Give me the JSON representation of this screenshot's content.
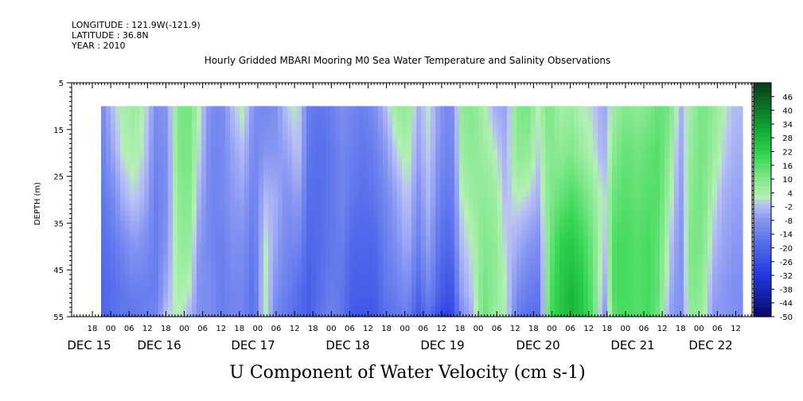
{
  "header": {
    "longitude": "LONGITUDE : 121.9W(-121.9)",
    "latitude": "LATITUDE : 36.8N",
    "year": "YEAR : 2010"
  },
  "chart_data": {
    "type": "heatmap",
    "title": "Hourly Gridded MBARI Mooring M0 Sea Water Temperature and Salinity Observations",
    "ylabel": "DEPTH (m)",
    "xlabel": "U Component of Water Velocity (cm s-1)",
    "ylim": [
      55,
      5
    ],
    "y_ticks": [
      5,
      15,
      25,
      35,
      45,
      55
    ],
    "data_depth_range": [
      10,
      55
    ],
    "x_hour_ticks": [
      "18",
      "00",
      "06",
      "12",
      "18",
      "00",
      "06",
      "12",
      "18",
      "00",
      "06",
      "12",
      "18",
      "00",
      "06",
      "12",
      "18",
      "00",
      "06",
      "12",
      "18",
      "00",
      "06",
      "12",
      "18",
      "00",
      "06",
      "12",
      "18",
      "00",
      "06",
      "12",
      "18",
      "00",
      "06",
      "12"
    ],
    "date_labels": [
      "DEC 15",
      "DEC 16",
      "DEC 17",
      "DEC 18",
      "DEC 19",
      "DEC 20",
      "DEC 21",
      "DEC 22"
    ],
    "colorbar": {
      "labels": [
        "46",
        "40",
        "34",
        "28",
        "22",
        "16",
        "10",
        "4",
        "-2",
        "-8",
        "-14",
        "-20",
        "-26",
        "-32",
        "-38",
        "-44",
        "-50"
      ],
      "range": [
        -50,
        52
      ],
      "colors": {
        "strong_positive": "#0b3d17",
        "positive": "#2ed84f",
        "weak_positive": "#a8f0a8",
        "weak_negative": "#aab4f2",
        "negative": "#4a6ae8",
        "strong_negative": "#0a0f6b"
      }
    },
    "time_range_hours": [
      0,
      176
    ],
    "profile_times_hours": [
      0,
      3,
      6,
      9,
      12,
      15,
      18,
      21,
      24,
      27,
      30,
      33,
      36,
      39,
      42,
      45,
      48,
      51,
      54,
      57,
      60,
      63,
      66,
      69,
      72,
      75,
      78,
      81,
      84,
      87,
      90,
      93,
      96,
      99,
      102,
      105,
      108,
      111,
      114,
      117,
      120,
      123,
      126,
      129,
      132,
      135,
      138,
      141,
      144,
      147,
      150,
      153,
      156,
      159,
      162,
      165,
      168,
      171,
      174
    ],
    "profile_depths_m": [
      10,
      20,
      30,
      40,
      50,
      55
    ],
    "profiles_cm_s": [
      [
        -12,
        -14,
        -16,
        -18,
        -20,
        -20
      ],
      [
        -2,
        -6,
        -12,
        -16,
        -18,
        -18
      ],
      [
        4,
        2,
        -4,
        -12,
        -16,
        -16
      ],
      [
        6,
        4,
        0,
        -8,
        -14,
        -16
      ],
      [
        2,
        0,
        -4,
        -10,
        -14,
        -14
      ],
      [
        -10,
        -12,
        -14,
        -14,
        -14,
        -12
      ],
      [
        -8,
        -10,
        -10,
        -8,
        -4,
        0
      ],
      [
        10,
        10,
        8,
        6,
        4,
        2
      ],
      [
        12,
        12,
        10,
        8,
        2,
        -2
      ],
      [
        2,
        0,
        -4,
        -8,
        -10,
        -10
      ],
      [
        -10,
        -12,
        -12,
        -12,
        -10,
        -10
      ],
      [
        -12,
        -12,
        -12,
        -14,
        -14,
        -14
      ],
      [
        -2,
        -6,
        -8,
        -10,
        -12,
        -12
      ],
      [
        4,
        -2,
        -6,
        -10,
        -12,
        -12
      ],
      [
        -10,
        -12,
        -14,
        -16,
        -18,
        -18
      ],
      [
        -12,
        -8,
        -2,
        2,
        4,
        4
      ],
      [
        -10,
        -8,
        -4,
        -6,
        -10,
        -12
      ],
      [
        0,
        -6,
        -10,
        -12,
        -14,
        -16
      ],
      [
        2,
        0,
        -6,
        -12,
        -18,
        -18
      ],
      [
        -14,
        -16,
        -18,
        -20,
        -22,
        -22
      ],
      [
        -16,
        -18,
        -18,
        -18,
        -18,
        -16
      ],
      [
        -14,
        -16,
        -16,
        -16,
        -14,
        -12
      ],
      [
        -10,
        -12,
        -12,
        -14,
        -16,
        -16
      ],
      [
        -12,
        -14,
        -16,
        -20,
        -22,
        -24
      ],
      [
        -14,
        -16,
        -18,
        -20,
        -22,
        -24
      ],
      [
        -10,
        -14,
        -16,
        -20,
        -22,
        -24
      ],
      [
        -2,
        -8,
        -12,
        -14,
        -16,
        -18
      ],
      [
        6,
        0,
        -6,
        -10,
        -14,
        -16
      ],
      [
        8,
        4,
        0,
        -4,
        -10,
        -14
      ],
      [
        -4,
        -6,
        -10,
        -14,
        -20,
        -24
      ],
      [
        2,
        0,
        -2,
        -6,
        -12,
        -18
      ],
      [
        -8,
        -10,
        -14,
        -18,
        -22,
        -28
      ],
      [
        -12,
        -14,
        -16,
        -20,
        -26,
        -30
      ],
      [
        8,
        6,
        2,
        -2,
        -6,
        -10
      ],
      [
        10,
        8,
        6,
        2,
        0,
        -4
      ],
      [
        4,
        6,
        8,
        10,
        12,
        14
      ],
      [
        -4,
        2,
        6,
        8,
        8,
        6
      ],
      [
        -6,
        -4,
        -2,
        0,
        2,
        4
      ],
      [
        10,
        8,
        2,
        -4,
        -10,
        -14
      ],
      [
        12,
        8,
        0,
        -8,
        -14,
        -18
      ],
      [
        2,
        0,
        -4,
        -10,
        -16,
        -18
      ],
      [
        12,
        10,
        10,
        12,
        16,
        18
      ],
      [
        4,
        8,
        14,
        22,
        24,
        24
      ],
      [
        6,
        10,
        18,
        24,
        28,
        28
      ],
      [
        2,
        6,
        14,
        20,
        24,
        24
      ],
      [
        0,
        2,
        8,
        12,
        14,
        16
      ],
      [
        -6,
        -4,
        0,
        -2,
        -6,
        -10
      ],
      [
        6,
        10,
        14,
        18,
        18,
        16
      ],
      [
        10,
        14,
        16,
        18,
        18,
        18
      ],
      [
        8,
        12,
        14,
        16,
        16,
        16
      ],
      [
        10,
        14,
        16,
        18,
        18,
        18
      ],
      [
        14,
        16,
        16,
        14,
        14,
        12
      ],
      [
        12,
        8,
        4,
        0,
        -4,
        -6
      ],
      [
        -4,
        -6,
        -8,
        -10,
        -10,
        -10
      ],
      [
        6,
        8,
        10,
        12,
        10,
        8
      ],
      [
        12,
        12,
        12,
        10,
        8,
        6
      ],
      [
        8,
        6,
        2,
        -2,
        -6,
        -8
      ],
      [
        2,
        0,
        -4,
        -6,
        -8,
        -8
      ],
      [
        -2,
        -4,
        -6,
        -8,
        -10,
        -10
      ]
    ]
  }
}
